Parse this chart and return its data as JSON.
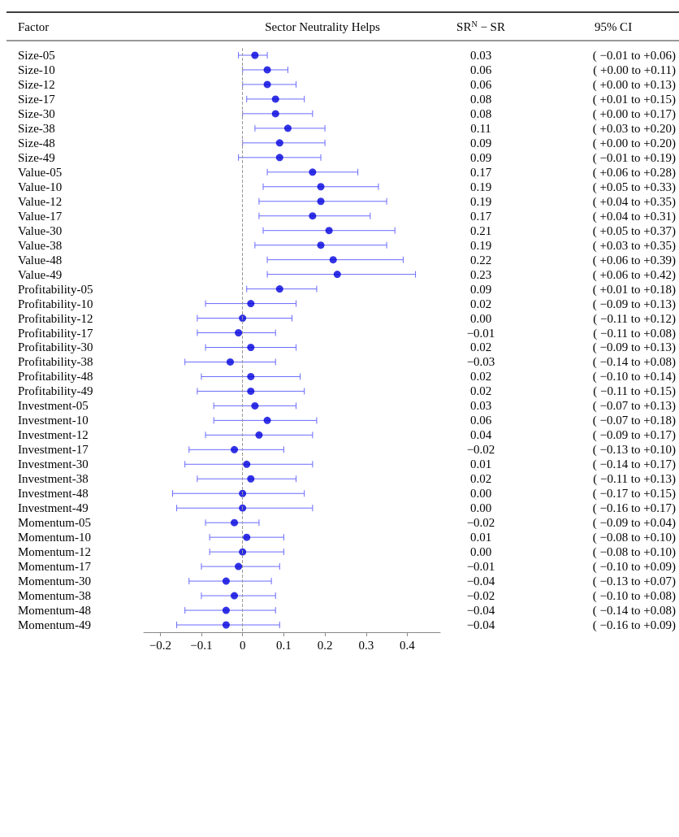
{
  "chart_data": {
    "type": "scatter",
    "orientation": "horizontal",
    "title": "Sector Neutrality Helps",
    "ylabel": "Factor",
    "marker": "circle",
    "grid": false,
    "categories": [
      "Size-05",
      "Size-10",
      "Size-12",
      "Size-17",
      "Size-30",
      "Size-38",
      "Size-48",
      "Size-49",
      "Value-05",
      "Value-10",
      "Value-12",
      "Value-17",
      "Value-30",
      "Value-38",
      "Value-48",
      "Value-49",
      "Profitability-05",
      "Profitability-10",
      "Profitability-12",
      "Profitability-17",
      "Profitability-30",
      "Profitability-38",
      "Profitability-48",
      "Profitability-49",
      "Investment-05",
      "Investment-10",
      "Investment-12",
      "Investment-17",
      "Investment-30",
      "Investment-38",
      "Investment-48",
      "Investment-49",
      "Momentum-05",
      "Momentum-10",
      "Momentum-12",
      "Momentum-17",
      "Momentum-30",
      "Momentum-38",
      "Momentum-48",
      "Momentum-49"
    ],
    "series": [
      {
        "color": "#0000dd",
        "values": [
          0.03,
          0.06,
          0.06,
          0.08,
          0.08,
          0.11,
          0.09,
          0.09,
          0.17,
          0.19,
          0.19,
          0.17,
          0.21,
          0.19,
          0.22,
          0.23,
          0.09,
          0.02,
          0.0,
          -0.01,
          0.02,
          -0.03,
          0.02,
          0.02,
          0.03,
          0.06,
          0.04,
          -0.02,
          0.01,
          0.02,
          0.0,
          0.0,
          -0.02,
          0.01,
          0.0,
          -0.01,
          -0.04,
          -0.02,
          -0.04,
          -0.04
        ],
        "errors": [
          [
            -0.01,
            0.06
          ],
          [
            0.0,
            0.11
          ],
          [
            0.0,
            0.13
          ],
          [
            0.01,
            0.15
          ],
          [
            0.0,
            0.17
          ],
          [
            0.03,
            0.2
          ],
          [
            0.0,
            0.2
          ],
          [
            -0.01,
            0.19
          ],
          [
            0.06,
            0.28
          ],
          [
            0.05,
            0.33
          ],
          [
            0.04,
            0.35
          ],
          [
            0.04,
            0.31
          ],
          [
            0.05,
            0.37
          ],
          [
            0.03,
            0.35
          ],
          [
            0.06,
            0.39
          ],
          [
            0.06,
            0.42
          ],
          [
            0.01,
            0.18
          ],
          [
            -0.09,
            0.13
          ],
          [
            -0.11,
            0.12
          ],
          [
            -0.11,
            0.08
          ],
          [
            -0.09,
            0.13
          ],
          [
            -0.14,
            0.08
          ],
          [
            -0.1,
            0.14
          ],
          [
            -0.11,
            0.15
          ],
          [
            -0.07,
            0.13
          ],
          [
            -0.07,
            0.18
          ],
          [
            -0.09,
            0.17
          ],
          [
            -0.13,
            0.1
          ],
          [
            -0.14,
            0.17
          ],
          [
            -0.11,
            0.13
          ],
          [
            -0.17,
            0.15
          ],
          [
            -0.16,
            0.17
          ],
          [
            -0.09,
            0.04
          ],
          [
            -0.08,
            0.1
          ],
          [
            -0.08,
            0.1
          ],
          [
            -0.1,
            0.09
          ],
          [
            -0.13,
            0.07
          ],
          [
            -0.1,
            0.08
          ],
          [
            -0.14,
            0.08
          ],
          [
            -0.16,
            0.09
          ]
        ],
        "value_labels": [
          "0.03",
          "0.06",
          "0.06",
          "0.08",
          "0.08",
          "0.11",
          "0.09",
          "0.09",
          "0.17",
          "0.19",
          "0.19",
          "0.17",
          "0.21",
          "0.19",
          "0.22",
          "0.23",
          "0.09",
          "0.02",
          "0.00",
          "−0.01",
          "0.02",
          "−0.03",
          "0.02",
          "0.02",
          "0.03",
          "0.06",
          "0.04",
          "−0.02",
          "0.01",
          "0.02",
          "0.00",
          "0.00",
          "−0.02",
          "0.01",
          "0.00",
          "−0.01",
          "−0.04",
          "−0.02",
          "−0.04",
          "−0.04"
        ]
      }
    ],
    "xlim": [
      -0.24,
      0.48
    ],
    "xticks": [
      {
        "value": -0.2,
        "label": "−0.2"
      },
      {
        "value": -0.1,
        "label": "−0.1"
      },
      0,
      0.1,
      0.2,
      0.3,
      0.4
    ],
    "ref_lines": [
      {
        "axis": "x",
        "value": 0,
        "color": "#999999",
        "line_style": "dashed"
      }
    ],
    "annotations": [
      "SR$^{N}$ − SR",
      "95% CI",
      "( −0.01 to +0.06)",
      "( +0.00 to +0.11)",
      "( +0.00 to +0.13)",
      "( +0.01 to +0.15)",
      "( +0.00 to +0.17)",
      "( +0.03 to +0.20)",
      "( +0.00 to +0.20)",
      "( −0.01 to +0.19)",
      "( +0.06 to +0.28)",
      "( +0.05 to +0.33)",
      "( +0.04 to +0.35)",
      "( +0.04 to +0.31)",
      "( +0.05 to +0.37)",
      "( +0.03 to +0.35)",
      "( +0.06 to +0.39)",
      "( +0.06 to +0.42)",
      "( +0.01 to +0.18)",
      "( −0.09 to +0.13)",
      "( −0.11 to +0.12)",
      "( −0.11 to +0.08)",
      "( −0.09 to +0.13)",
      "( −0.14 to +0.08)",
      "( −0.10 to +0.14)",
      "( −0.11 to +0.15)",
      "( −0.07 to +0.13)",
      "( −0.07 to +0.18)",
      "( −0.09 to +0.17)",
      "( −0.13 to +0.10)",
      "( −0.14 to +0.17)",
      "( −0.11 to +0.13)",
      "( −0.17 to +0.15)",
      "( −0.16 to +0.17)",
      "( −0.09 to +0.04)",
      "( −0.08 to +0.10)",
      "( −0.08 to +0.10)",
      "( −0.10 to +0.09)",
      "( −0.13 to +0.07)",
      "( −0.10 to +0.08)",
      "( −0.14 to +0.08)",
      "( −0.16 to +0.09)"
    ]
  }
}
